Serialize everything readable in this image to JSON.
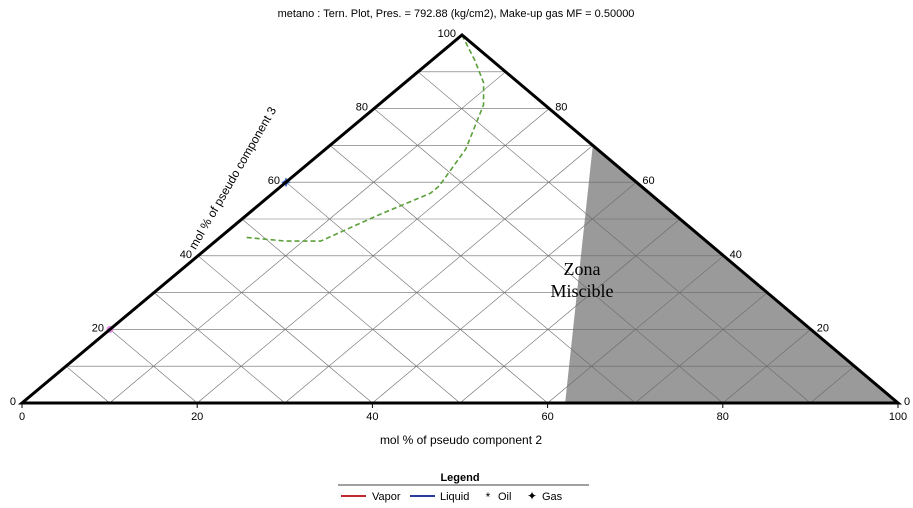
{
  "chart_data": {
    "type": "ternary",
    "title": "metano : Tern. Plot, Pres. = 792.88 (kg/cm2), Make-up gas MF = 0.50000",
    "bottom_axis_label": "mol % of pseudo component 2",
    "left_axis_label": "mol % of pseudo component 3",
    "bottom_ticks": [
      "0",
      "20",
      "40",
      "60",
      "80",
      "100"
    ],
    "left_ticks": [
      "20",
      "40",
      "60",
      "80",
      "100"
    ],
    "right_ticks": [
      "0",
      "20",
      "40",
      "60",
      "80"
    ],
    "zone_label_line1": "Zona",
    "zone_label_line2": "Miscible",
    "miscible_zone": [
      [
        0,
        30,
        70
      ],
      [
        0,
        100,
        0
      ],
      [
        38,
        62,
        0
      ]
    ],
    "tie_line": [
      [
        80,
        0,
        20
      ],
      [
        0,
        0,
        100
      ]
    ],
    "oil_point": [
      80,
      0,
      20
    ],
    "gas_point": [
      40,
      0,
      60
    ],
    "envelope_curve": [
      [
        0,
        0,
        100
      ],
      [
        2,
        5,
        93
      ],
      [
        4,
        9,
        87
      ],
      [
        7,
        12,
        81
      ],
      [
        11,
        14,
        75
      ],
      [
        15,
        16,
        69
      ],
      [
        19,
        17,
        64
      ],
      [
        23,
        18,
        59
      ],
      [
        25,
        18,
        57
      ],
      [
        34,
        15,
        51
      ],
      [
        44,
        12,
        44
      ],
      [
        48,
        8,
        44
      ],
      [
        52,
        3,
        45
      ]
    ],
    "legend": {
      "title": "Legend",
      "items": [
        {
          "label": "Vapor",
          "type": "line",
          "color": "#c0282d"
        },
        {
          "label": "Liquid",
          "type": "line",
          "color": "#2b3a9b"
        },
        {
          "label": "Oil",
          "type": "marker",
          "color": "#e68ae6"
        },
        {
          "label": "Gas",
          "type": "marker",
          "color": "#3a62c8"
        }
      ]
    },
    "colors": {
      "zone_fill": "#9a9a9a",
      "grid": "#6a6a6a",
      "tie_line": "#4a8fd6",
      "envelope": "#5aa03a",
      "oil": "#e68ae6",
      "gas": "#3a62c8"
    }
  }
}
